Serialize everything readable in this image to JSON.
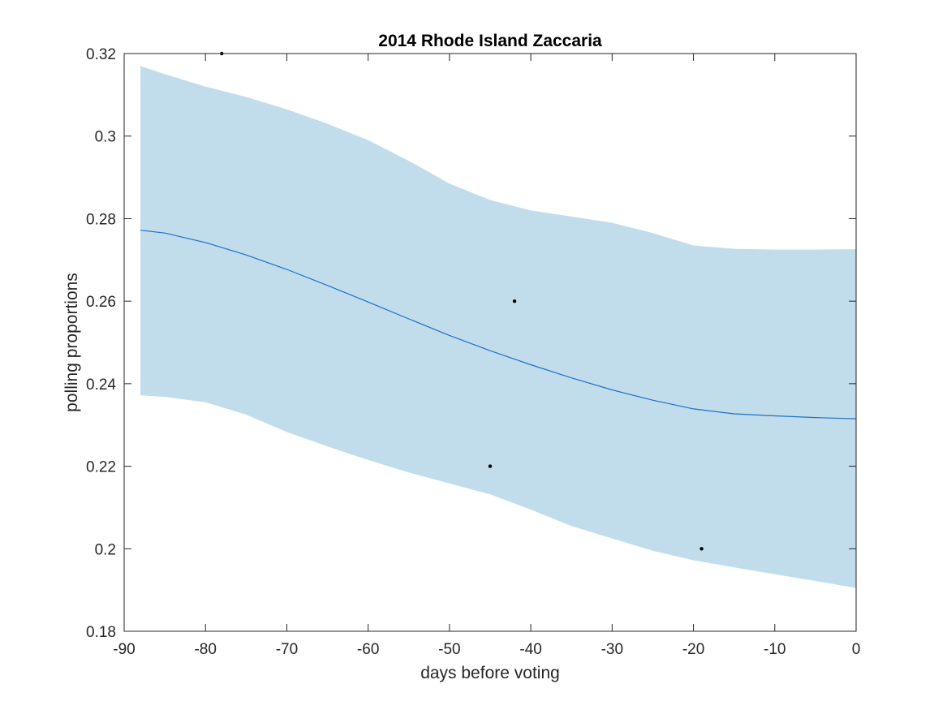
{
  "chart_data": {
    "type": "line",
    "title": "2014 Rhode Island Zaccaria",
    "xlabel": "days before voting",
    "ylabel": "polling proportions",
    "xlim": [
      -90,
      0
    ],
    "ylim": [
      0.18,
      0.32
    ],
    "xticks": [
      -90,
      -80,
      -70,
      -60,
      -50,
      -40,
      -30,
      -20,
      -10,
      0
    ],
    "xtick_labels": [
      "-90",
      "-80",
      "-70",
      "-60",
      "-50",
      "-40",
      "-30",
      "-20",
      "-10",
      "0"
    ],
    "yticks": [
      0.18,
      0.2,
      0.22,
      0.24,
      0.26,
      0.28,
      0.3,
      0.32
    ],
    "ytick_labels": [
      "0.18",
      "0.2",
      "0.22",
      "0.24",
      "0.26",
      "0.28",
      "0.3",
      "0.32"
    ],
    "grid": false,
    "legend": "none",
    "band": {
      "x": [
        -88,
        -85,
        -80,
        -75,
        -70,
        -65,
        -60,
        -55,
        -50,
        -45,
        -40,
        -35,
        -30,
        -25,
        -20,
        -15,
        -10,
        -5,
        0
      ],
      "upper": [
        0.317,
        0.315,
        0.312,
        0.3095,
        0.3065,
        0.303,
        0.299,
        0.294,
        0.2885,
        0.2845,
        0.282,
        0.2805,
        0.279,
        0.2765,
        0.2735,
        0.2727,
        0.2725,
        0.2725,
        0.2726
      ],
      "lower": [
        0.2372,
        0.2368,
        0.2355,
        0.2325,
        0.2283,
        0.2248,
        0.2215,
        0.2185,
        0.2158,
        0.2132,
        0.2095,
        0.2055,
        0.2025,
        0.1995,
        0.1972,
        0.1955,
        0.1938,
        0.1922,
        0.1905
      ],
      "color": "#c1ddeb"
    },
    "series": [
      {
        "type": "line",
        "x": [
          -88,
          -85,
          -80,
          -75,
          -70,
          -65,
          -60,
          -55,
          -50,
          -45,
          -40,
          -35,
          -30,
          -25,
          -20,
          -15,
          -10,
          -5,
          0
        ],
        "values": [
          0.2772,
          0.2765,
          0.2742,
          0.2712,
          0.2677,
          0.2638,
          0.2598,
          0.2557,
          0.2517,
          0.248,
          0.2446,
          0.2414,
          0.2385,
          0.236,
          0.2339,
          0.2327,
          0.2322,
          0.2318,
          0.2315
        ],
        "color": "#1f6fc7"
      },
      {
        "type": "scatter",
        "x": [
          -78,
          -42,
          -45,
          -19
        ],
        "values": [
          0.32,
          0.26,
          0.22,
          0.2
        ],
        "color": "#000000"
      }
    ]
  }
}
